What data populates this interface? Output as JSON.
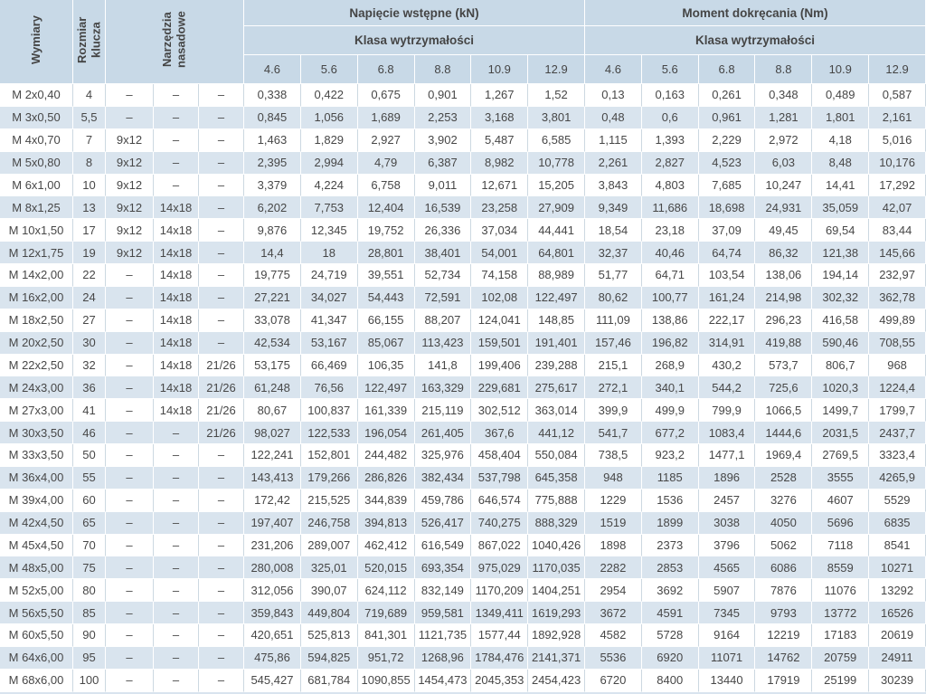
{
  "colors": {
    "header_bg": "#c8d9e7",
    "row_alt_bg": "#d9e4ee",
    "grid_line_on_white": "#ccd8e1",
    "grid_line_on_blue": "#ffffff",
    "text": "#474747"
  },
  "header": {
    "dimensions_label": "Wymiary",
    "wrench_size_label": "Rozmiar klucza",
    "socket_tools_label": "Narzędzia nasadowe",
    "preload_group_label": "Napięcie wstępne (kN)",
    "torque_group_label": "Moment dokręcania (Nm)",
    "strength_class_label": "Klasa wytrzymałości",
    "classes": [
      "4.6",
      "5.6",
      "6.8",
      "8.8",
      "10.9",
      "12.9"
    ]
  },
  "table": {
    "rows": [
      {
        "wymiary": "M 2x0,40",
        "rozmiar": "4",
        "narzedzia": [
          "–",
          "–",
          "–"
        ],
        "napiecie": [
          "0,338",
          "0,422",
          "0,675",
          "0,901",
          "1,267",
          "1,52"
        ],
        "moment": [
          "0,13",
          "0,163",
          "0,261",
          "0,348",
          "0,489",
          "0,587"
        ]
      },
      {
        "wymiary": "M 3x0,50",
        "rozmiar": "5,5",
        "narzedzia": [
          "–",
          "–",
          "–"
        ],
        "napiecie": [
          "0,845",
          "1,056",
          "1,689",
          "2,253",
          "3,168",
          "3,801"
        ],
        "moment": [
          "0,48",
          "0,6",
          "0,961",
          "1,281",
          "1,801",
          "2,161"
        ]
      },
      {
        "wymiary": "M 4x0,70",
        "rozmiar": "7",
        "narzedzia": [
          "9x12",
          "–",
          "–"
        ],
        "napiecie": [
          "1,463",
          "1,829",
          "2,927",
          "3,902",
          "5,487",
          "6,585"
        ],
        "moment": [
          "1,115",
          "1,393",
          "2,229",
          "2,972",
          "4,18",
          "5,016"
        ]
      },
      {
        "wymiary": "M 5x0,80",
        "rozmiar": "8",
        "narzedzia": [
          "9x12",
          "–",
          "–"
        ],
        "napiecie": [
          "2,395",
          "2,994",
          "4,79",
          "6,387",
          "8,982",
          "10,778"
        ],
        "moment": [
          "2,261",
          "2,827",
          "4,523",
          "6,03",
          "8,48",
          "10,176"
        ]
      },
      {
        "wymiary": "M 6x1,00",
        "rozmiar": "10",
        "narzedzia": [
          "9x12",
          "–",
          "–"
        ],
        "napiecie": [
          "3,379",
          "4,224",
          "6,758",
          "9,011",
          "12,671",
          "15,205"
        ],
        "moment": [
          "3,843",
          "4,803",
          "7,685",
          "10,247",
          "14,41",
          "17,292"
        ]
      },
      {
        "wymiary": "M 8x1,25",
        "rozmiar": "13",
        "narzedzia": [
          "9x12",
          "14x18",
          "–"
        ],
        "napiecie": [
          "6,202",
          "7,753",
          "12,404",
          "16,539",
          "23,258",
          "27,909"
        ],
        "moment": [
          "9,349",
          "11,686",
          "18,698",
          "24,931",
          "35,059",
          "42,07"
        ]
      },
      {
        "wymiary": "M 10x1,50",
        "rozmiar": "17",
        "narzedzia": [
          "9x12",
          "14x18",
          "–"
        ],
        "napiecie": [
          "9,876",
          "12,345",
          "19,752",
          "26,336",
          "37,034",
          "44,441"
        ],
        "moment": [
          "18,54",
          "23,18",
          "37,09",
          "49,45",
          "69,54",
          "83,44"
        ]
      },
      {
        "wymiary": "M 12x1,75",
        "rozmiar": "19",
        "narzedzia": [
          "9x12",
          "14x18",
          "–"
        ],
        "napiecie": [
          "14,4",
          "18",
          "28,801",
          "38,401",
          "54,001",
          "64,801"
        ],
        "moment": [
          "32,37",
          "40,46",
          "64,74",
          "86,32",
          "121,38",
          "145,66"
        ]
      },
      {
        "wymiary": "M 14x2,00",
        "rozmiar": "22",
        "narzedzia": [
          "–",
          "14x18",
          "–"
        ],
        "napiecie": [
          "19,775",
          "24,719",
          "39,551",
          "52,734",
          "74,158",
          "88,989"
        ],
        "moment": [
          "51,77",
          "64,71",
          "103,54",
          "138,06",
          "194,14",
          "232,97"
        ]
      },
      {
        "wymiary": "M 16x2,00",
        "rozmiar": "24",
        "narzedzia": [
          "–",
          "14x18",
          "–"
        ],
        "napiecie": [
          "27,221",
          "34,027",
          "54,443",
          "72,591",
          "102,08",
          "122,497"
        ],
        "moment": [
          "80,62",
          "100,77",
          "161,24",
          "214,98",
          "302,32",
          "362,78"
        ]
      },
      {
        "wymiary": "M 18x2,50",
        "rozmiar": "27",
        "narzedzia": [
          "–",
          "14x18",
          "–"
        ],
        "napiecie": [
          "33,078",
          "41,347",
          "66,155",
          "88,207",
          "124,041",
          "148,85"
        ],
        "moment": [
          "111,09",
          "138,86",
          "222,17",
          "296,23",
          "416,58",
          "499,89"
        ]
      },
      {
        "wymiary": "M 20x2,50",
        "rozmiar": "30",
        "narzedzia": [
          "–",
          "14x18",
          "–"
        ],
        "napiecie": [
          "42,534",
          "53,167",
          "85,067",
          "113,423",
          "159,501",
          "191,401"
        ],
        "moment": [
          "157,46",
          "196,82",
          "314,91",
          "419,88",
          "590,46",
          "708,55"
        ]
      },
      {
        "wymiary": "M 22x2,50",
        "rozmiar": "32",
        "narzedzia": [
          "–",
          "14x18",
          "21/26"
        ],
        "napiecie": [
          "53,175",
          "66,469",
          "106,35",
          "141,8",
          "199,406",
          "239,288"
        ],
        "moment": [
          "215,1",
          "268,9",
          "430,2",
          "573,7",
          "806,7",
          "968"
        ]
      },
      {
        "wymiary": "M 24x3,00",
        "rozmiar": "36",
        "narzedzia": [
          "–",
          "14x18",
          "21/26"
        ],
        "napiecie": [
          "61,248",
          "76,56",
          "122,497",
          "163,329",
          "229,681",
          "275,617"
        ],
        "moment": [
          "272,1",
          "340,1",
          "544,2",
          "725,6",
          "1020,3",
          "1224,4"
        ]
      },
      {
        "wymiary": "M 27x3,00",
        "rozmiar": "41",
        "narzedzia": [
          "–",
          "14x18",
          "21/26"
        ],
        "napiecie": [
          "80,67",
          "100,837",
          "161,339",
          "215,119",
          "302,512",
          "363,014"
        ],
        "moment": [
          "399,9",
          "499,9",
          "799,9",
          "1066,5",
          "1499,7",
          "1799,7"
        ]
      },
      {
        "wymiary": "M 30x3,50",
        "rozmiar": "46",
        "narzedzia": [
          "–",
          "–",
          "21/26"
        ],
        "napiecie": [
          "98,027",
          "122,533",
          "196,054",
          "261,405",
          "367,6",
          "441,12"
        ],
        "moment": [
          "541,7",
          "677,2",
          "1083,4",
          "1444,6",
          "2031,5",
          "2437,7"
        ]
      },
      {
        "wymiary": "M 33x3,50",
        "rozmiar": "50",
        "narzedzia": [
          "–",
          "–",
          "–"
        ],
        "napiecie": [
          "122,241",
          "152,801",
          "244,482",
          "325,976",
          "458,404",
          "550,084"
        ],
        "moment": [
          "738,5",
          "923,2",
          "1477,1",
          "1969,4",
          "2769,5",
          "3323,4"
        ]
      },
      {
        "wymiary": "M 36x4,00",
        "rozmiar": "55",
        "narzedzia": [
          "–",
          "–",
          "–"
        ],
        "napiecie": [
          "143,413",
          "179,266",
          "286,826",
          "382,434",
          "537,798",
          "645,358"
        ],
        "moment": [
          "948",
          "1185",
          "1896",
          "2528",
          "3555",
          "4265,9"
        ]
      },
      {
        "wymiary": "M 39x4,00",
        "rozmiar": "60",
        "narzedzia": [
          "–",
          "–",
          "–"
        ],
        "napiecie": [
          "172,42",
          "215,525",
          "344,839",
          "459,786",
          "646,574",
          "775,888"
        ],
        "moment": [
          "1229",
          "1536",
          "2457",
          "3276",
          "4607",
          "5529"
        ]
      },
      {
        "wymiary": "M 42x4,50",
        "rozmiar": "65",
        "narzedzia": [
          "–",
          "–",
          "–"
        ],
        "napiecie": [
          "197,407",
          "246,758",
          "394,813",
          "526,417",
          "740,275",
          "888,329"
        ],
        "moment": [
          "1519",
          "1899",
          "3038",
          "4050",
          "5696",
          "6835"
        ]
      },
      {
        "wymiary": "M 45x4,50",
        "rozmiar": "70",
        "narzedzia": [
          "–",
          "–",
          "–"
        ],
        "napiecie": [
          "231,206",
          "289,007",
          "462,412",
          "616,549",
          "867,022",
          "1040,426"
        ],
        "moment": [
          "1898",
          "2373",
          "3796",
          "5062",
          "7118",
          "8541"
        ]
      },
      {
        "wymiary": "M 48x5,00",
        "rozmiar": "75",
        "narzedzia": [
          "–",
          "–",
          "–"
        ],
        "napiecie": [
          "280,008",
          "325,01",
          "520,015",
          "693,354",
          "975,029",
          "1170,035"
        ],
        "moment": [
          "2282",
          "2853",
          "4565",
          "6086",
          "8559",
          "10271"
        ]
      },
      {
        "wymiary": "M 52x5,00",
        "rozmiar": "80",
        "narzedzia": [
          "–",
          "–",
          "–"
        ],
        "napiecie": [
          "312,056",
          "390,07",
          "624,112",
          "832,149",
          "1170,209",
          "1404,251"
        ],
        "moment": [
          "2954",
          "3692",
          "5907",
          "7876",
          "11076",
          "13292"
        ]
      },
      {
        "wymiary": "M 56x5,50",
        "rozmiar": "85",
        "narzedzia": [
          "–",
          "–",
          "–"
        ],
        "napiecie": [
          "359,843",
          "449,804",
          "719,689",
          "959,581",
          "1349,411",
          "1619,293"
        ],
        "moment": [
          "3672",
          "4591",
          "7345",
          "9793",
          "13772",
          "16526"
        ]
      },
      {
        "wymiary": "M 60x5,50",
        "rozmiar": "90",
        "narzedzia": [
          "–",
          "–",
          "–"
        ],
        "napiecie": [
          "420,651",
          "525,813",
          "841,301",
          "1121,735",
          "1577,44",
          "1892,928"
        ],
        "moment": [
          "4582",
          "5728",
          "9164",
          "12219",
          "17183",
          "20619"
        ]
      },
      {
        "wymiary": "M 64x6,00",
        "rozmiar": "95",
        "narzedzia": [
          "–",
          "–",
          "–"
        ],
        "napiecie": [
          "475,86",
          "594,825",
          "951,72",
          "1268,96",
          "1784,476",
          "2141,371"
        ],
        "moment": [
          "5536",
          "6920",
          "11071",
          "14762",
          "20759",
          "24911"
        ]
      },
      {
        "wymiary": "M 68x6,00",
        "rozmiar": "100",
        "narzedzia": [
          "–",
          "–",
          "–"
        ],
        "napiecie": [
          "545,427",
          "681,784",
          "1090,855",
          "1454,473",
          "2045,353",
          "2454,423"
        ],
        "moment": [
          "6720",
          "8400",
          "13440",
          "17919",
          "25199",
          "30239"
        ]
      }
    ]
  }
}
